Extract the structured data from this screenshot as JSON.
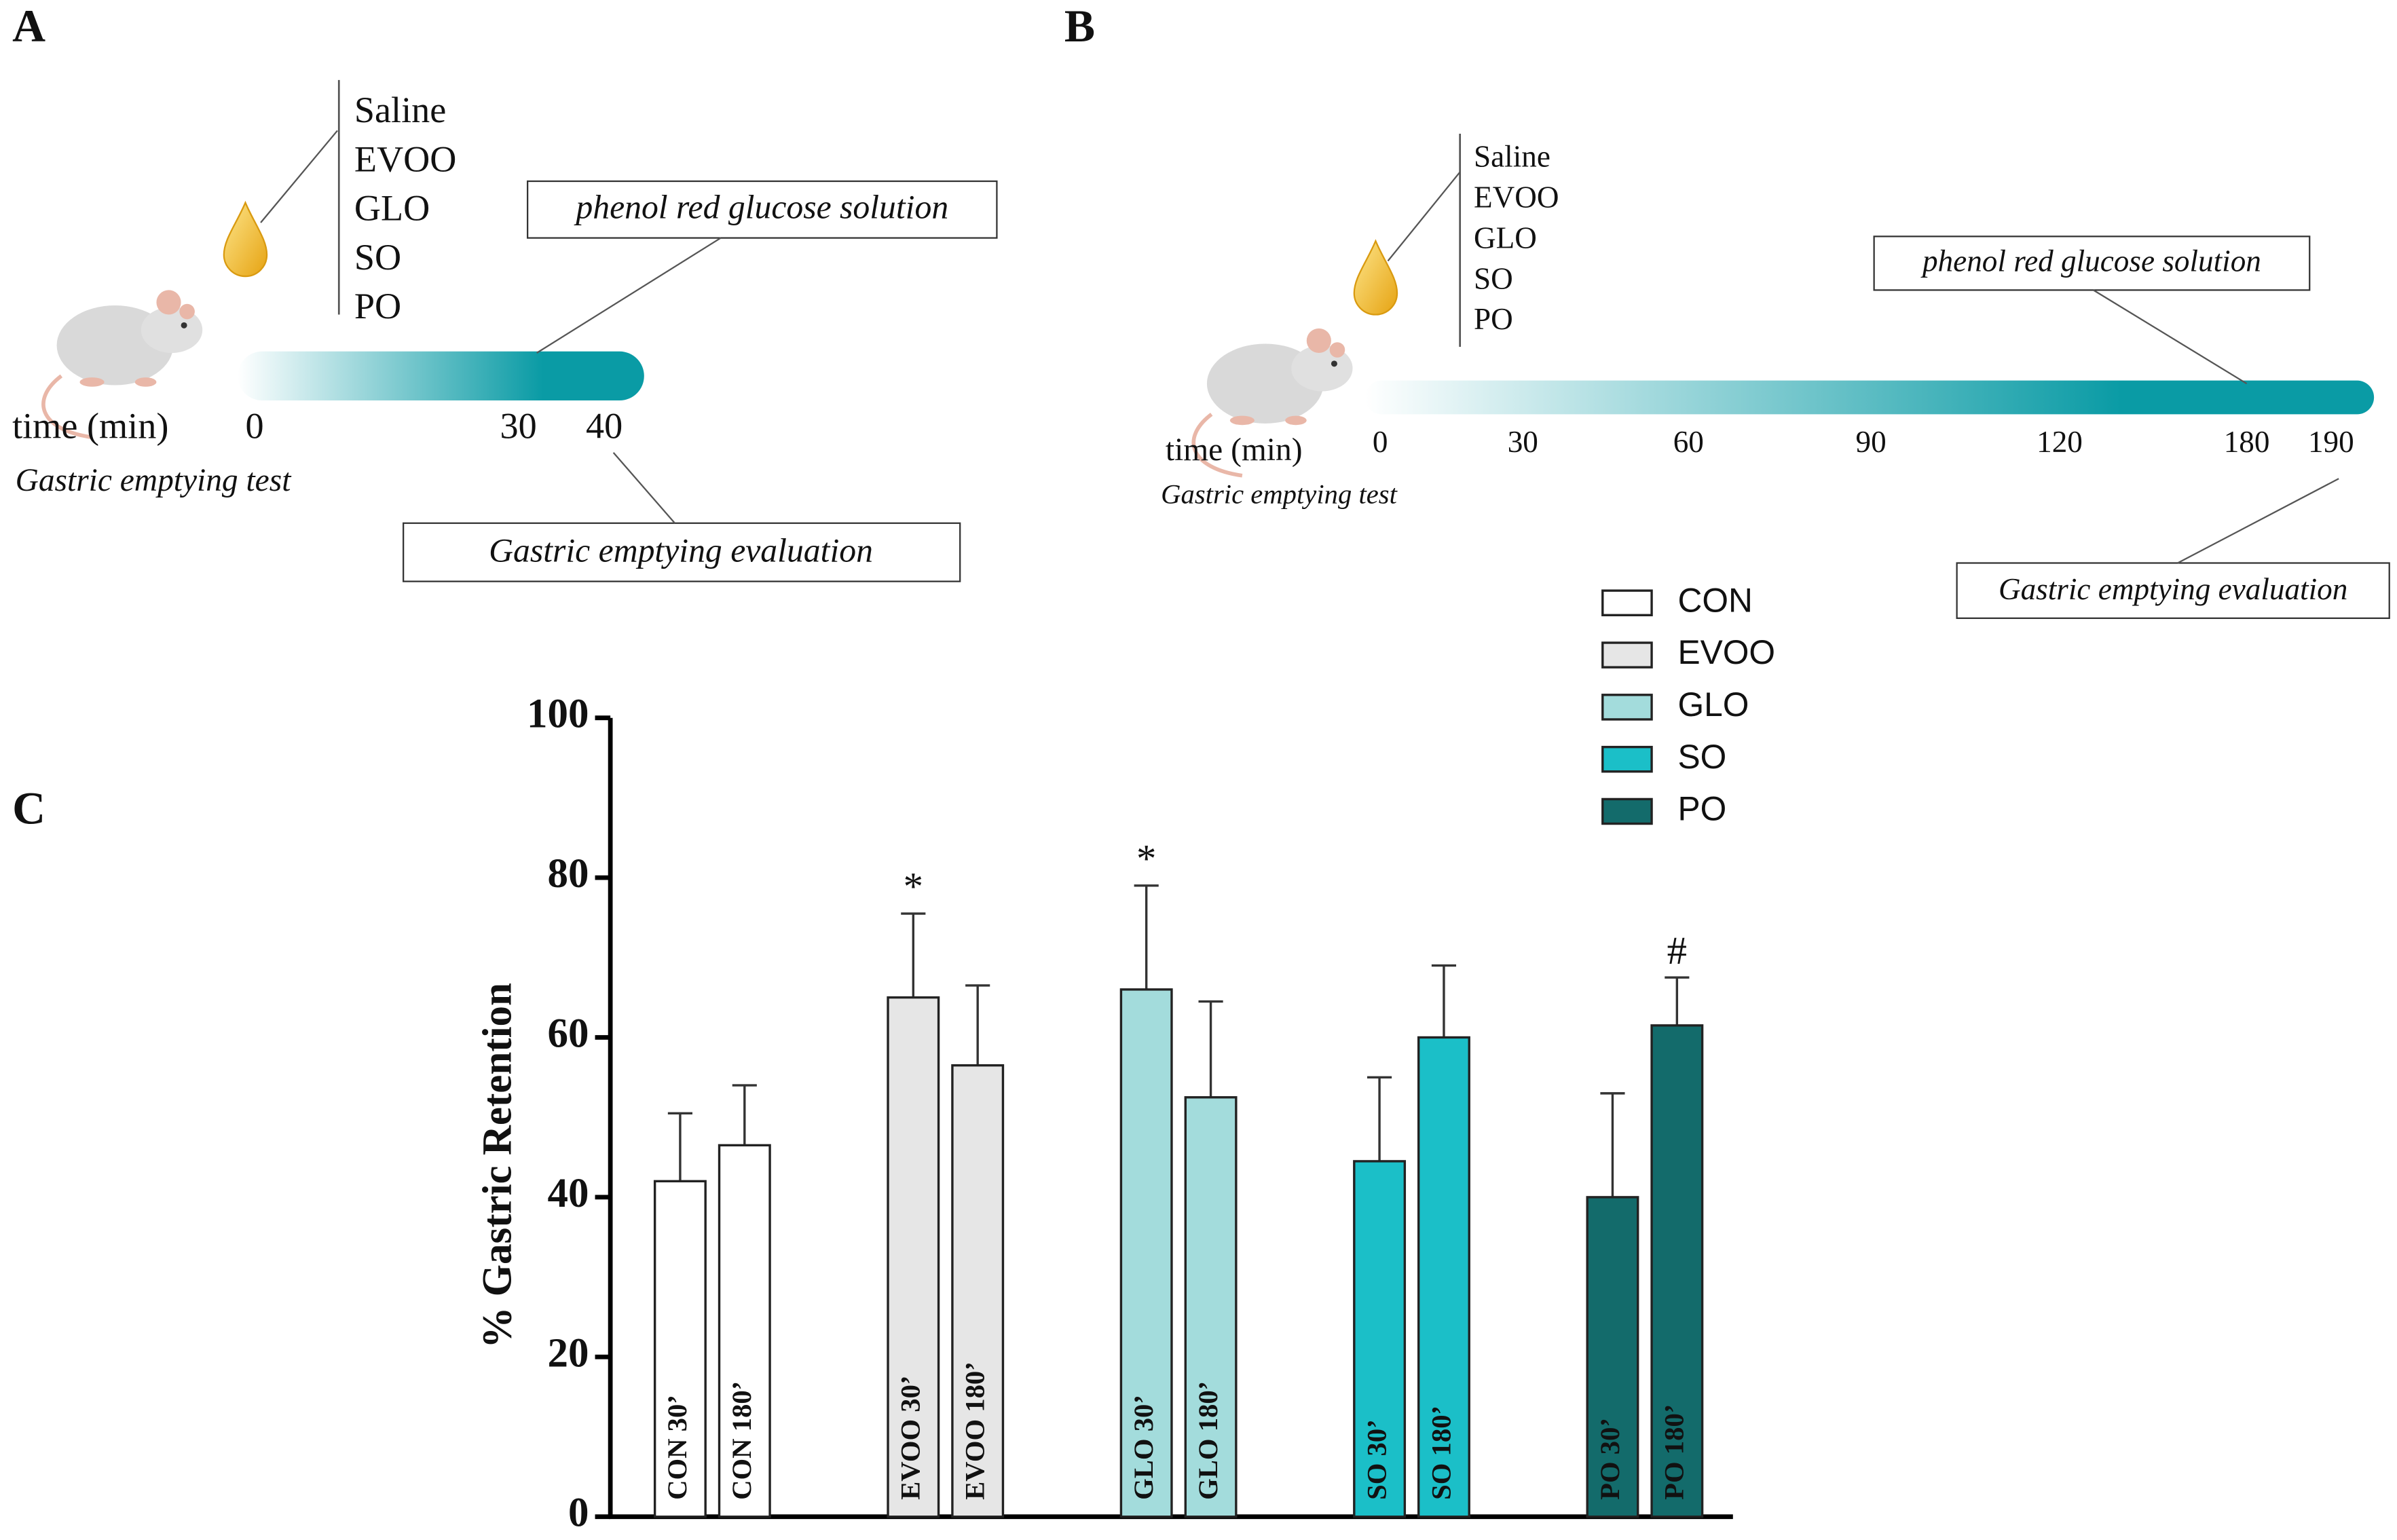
{
  "panel_a": {
    "label": "A",
    "treatments": [
      "Saline",
      "EVOO",
      "GLO",
      "SO",
      "PO"
    ],
    "solution": "phenol red glucose solution",
    "time_label": "time (min)",
    "times": [
      "0",
      "30",
      "40"
    ],
    "test": "Gastric emptying test",
    "evaluation": "Gastric emptying evaluation"
  },
  "panel_b": {
    "label": "B",
    "treatments": [
      "Saline",
      "EVOO",
      "GLO",
      "SO",
      "PO"
    ],
    "solution": "phenol red glucose solution",
    "time_label": "time (min)",
    "times": [
      "0",
      "30",
      "60",
      "90",
      "120",
      "180",
      "190"
    ],
    "test": "Gastric emptying test",
    "evaluation": "Gastric emptying evaluation"
  },
  "chart_data": {
    "type": "bar",
    "label": "C",
    "ylabel": "% Gastric Retention",
    "ylim": [
      0,
      100
    ],
    "yticks": [
      0,
      20,
      40,
      60,
      80,
      100
    ],
    "series": [
      {
        "name": "CON",
        "color": "#ffffff",
        "labels": [
          "CON 30’",
          "CON 180’"
        ],
        "values": [
          42,
          46.5
        ],
        "errors": [
          8.5,
          7.5
        ],
        "annotations": [
          null,
          null
        ]
      },
      {
        "name": "EVOO",
        "color": "#e6e6e6",
        "labels": [
          "EVOO 30’",
          "EVOO 180’"
        ],
        "values": [
          65,
          56.5
        ],
        "errors": [
          10.5,
          10
        ],
        "annotations": [
          "*",
          null
        ]
      },
      {
        "name": "GLO",
        "color": "#a3dcdc",
        "labels": [
          "GLO 30’",
          "GLO 180’"
        ],
        "values": [
          66,
          52.5
        ],
        "errors": [
          13,
          12
        ],
        "annotations": [
          "*",
          null
        ]
      },
      {
        "name": "SO",
        "color": "#1bbfc8",
        "labels": [
          "SO 30’",
          "SO 180’"
        ],
        "values": [
          44.5,
          60
        ],
        "errors": [
          10.5,
          9
        ],
        "annotations": [
          null,
          null
        ]
      },
      {
        "name": "PO",
        "color": "#136b6b",
        "labels": [
          "PO 30’",
          "PO 180’"
        ],
        "values": [
          40,
          61.5
        ],
        "errors": [
          13,
          6
        ],
        "annotations": [
          null,
          "#"
        ]
      }
    ]
  }
}
